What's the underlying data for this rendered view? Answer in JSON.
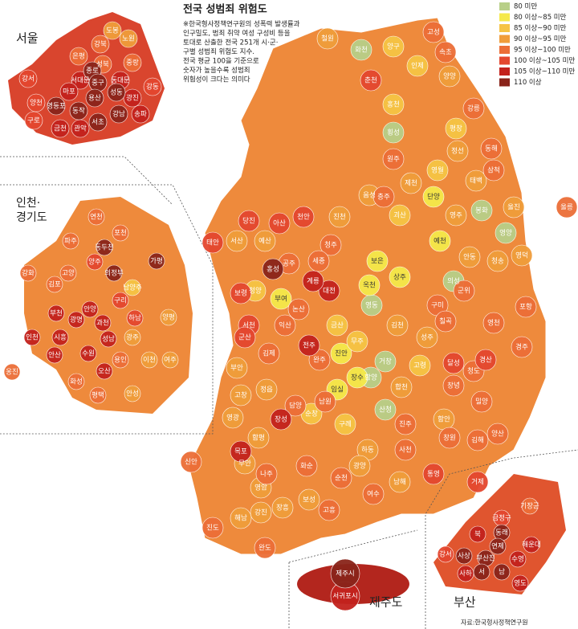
{
  "title": "전국 성범죄 위험도",
  "note": [
    "※한국형사정책연구원의 성폭력 발생률과",
    "인구밀도, 범죄 취약 여성 구성비 등을",
    "토대로 산출한 전국 251개 시·군·",
    "구별 성범죄 위험도 지수.",
    "전국 평균 100을 기준으로",
    "숫자가 높을수록 성범죄",
    "위험성이 크다는 의미다"
  ],
  "legend": [
    {
      "label": "80 미만",
      "color": "#b8cf88"
    },
    {
      "label": "80 이상~85 미만",
      "color": "#f5e94a"
    },
    {
      "label": "85 이상~90 미만",
      "color": "#f6c444"
    },
    {
      "label": "90 이상~95 미만",
      "color": "#f09d3a"
    },
    {
      "label": "95 이상~100 미만",
      "color": "#ec6e37"
    },
    {
      "label": "100 이상~105 미만",
      "color": "#e4472f"
    },
    {
      "label": "105 이상~110 미만",
      "color": "#c3221d"
    },
    {
      "label": "110 이상",
      "color": "#8a241a"
    }
  ],
  "areas": [
    {
      "regions": [
        [
          "화천",
          "횡성",
          "봉화",
          "영양",
          "의성",
          "영동",
          "거창",
          "함양",
          "산청"
        ],
        [
          "단양",
          "예천",
          "보은",
          "상주",
          "옥천",
          "부여",
          "진안",
          "장수",
          "임실"
        ],
        [
          "양구",
          "인제",
          "홍천",
          "평창",
          "영월",
          "괴산",
          "청양",
          "금산",
          "무주",
          "순창",
          "구례",
          "고령"
        ],
        [
          "철원",
          "양양",
          "정선",
          "태백",
          "제천",
          "음성",
          "진천",
          "서산",
          "예산",
          "영주",
          "안동",
          "청송",
          "영덕",
          "울진",
          "김천",
          "성주",
          "합천",
          "함안",
          "남해",
          "하동",
          "광양",
          "보성",
          "장흥",
          "강진",
          "해남",
          "영암",
          "무안",
          "함평",
          "영광",
          "고창",
          "부안",
          "정읍"
        ],
        [
          "고성",
          "속초",
          "강릉",
          "동해",
          "삼척",
          "원주",
          "충주",
          "청주",
          "세종",
          "공주",
          "논산",
          "익산",
          "김제",
          "완주",
          "남원",
          "구미",
          "칠곡",
          "군위",
          "영천",
          "경주",
          "포항",
          "청도",
          "밀양",
          "창녕",
          "양산",
          "김해",
          "창원",
          "사천",
          "진주",
          "담양",
          "화순",
          "나주",
          "여수",
          "순천",
          "고흥",
          "완도",
          "진도",
          "신안",
          "울릉"
        ],
        [
          "춘천",
          "당진",
          "아산",
          "천안",
          "태안",
          "보령",
          "서천",
          "군산",
          "경산",
          "달성",
          "거제",
          "통영"
        ],
        [
          "장성",
          "대전",
          "전주",
          "목포",
          "계룡"
        ],
        [
          "홍성"
        ]
      ]
    },
    {
      "title": [
        "서울"
      ],
      "regions": [
        [],
        [],
        [],
        [
          "도봉",
          "노원"
        ],
        [
          "은평",
          "강북",
          "성북",
          "중랑"
        ],
        [
          "강서",
          "양천",
          "구로",
          "강동"
        ],
        [
          "서대문",
          "마포",
          "동대문",
          "광진",
          "송파",
          "금천",
          "관악"
        ],
        [
          "종로",
          "중구",
          "용산",
          "성동",
          "영등포",
          "동작",
          "강남",
          "서초"
        ]
      ]
    },
    {
      "title": [
        "인천·",
        "경기도"
      ],
      "regions": [
        [],
        [],
        [
          "남양주"
        ],
        [
          "양평",
          "광주",
          "여주",
          "이천",
          "안성"
        ],
        [
          "연천",
          "포천",
          "파주",
          "고양",
          "강화",
          "김포",
          "용인",
          "화성",
          "평택",
          "옹진"
        ],
        [
          "양주",
          "구리",
          "하남"
        ],
        [
          "부천",
          "인천",
          "시흥",
          "광명",
          "안양",
          "과천",
          "성남",
          "수원",
          "오산",
          "안산"
        ],
        [
          "가평",
          "동두천",
          "의정부"
        ]
      ]
    },
    {
      "title": [
        "제주도"
      ],
      "regions": [
        [],
        [],
        [],
        [],
        [],
        [],
        [
          "서귀포시"
        ],
        [
          "제주시"
        ]
      ]
    },
    {
      "title": [
        "부산"
      ],
      "regions": [
        [],
        [],
        [],
        [],
        [
          "기장군"
        ],
        [
          "금정구",
          "강서"
        ],
        [
          "북",
          "해운대",
          "수영",
          "사하",
          "영도"
        ],
        [
          "동래",
          "연제",
          "부산진",
          "사상",
          "서",
          "남"
        ]
      ]
    }
  ],
  "source": "자료:한국형사정책연구원"
}
